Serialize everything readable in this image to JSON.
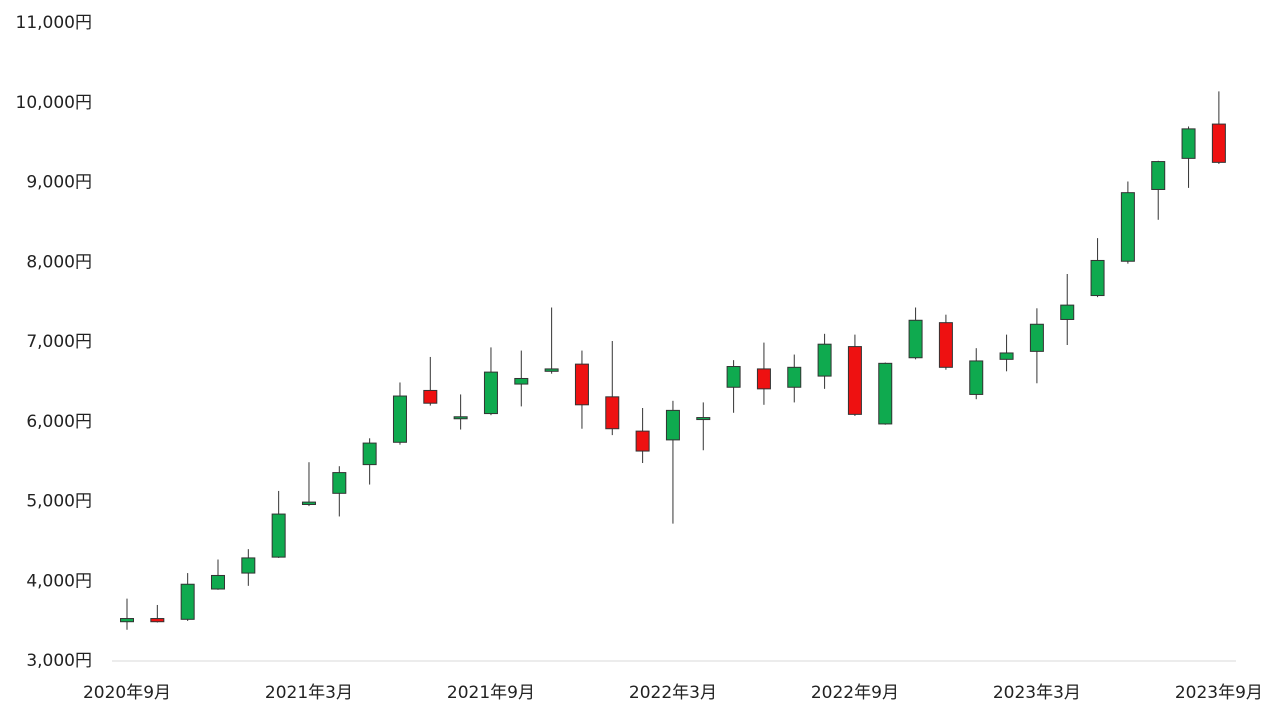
{
  "chart_data": {
    "type": "candlestick",
    "currency_suffix": "円",
    "ylim": [
      3000,
      11000
    ],
    "y_ticks": [
      3000,
      4000,
      5000,
      6000,
      7000,
      8000,
      9000,
      10000,
      11000
    ],
    "y_tick_labels": [
      "3,000円",
      "4,000円",
      "5,000円",
      "6,000円",
      "7,000円",
      "8,000円",
      "9,000円",
      "10,000円",
      "11,000円"
    ],
    "x_tick_labels": [
      "2020年9月",
      "2021年3月",
      "2021年9月",
      "2022年3月",
      "2022年9月",
      "2023年3月",
      "2023年9月"
    ],
    "grid": false,
    "colors": {
      "up": "#0faa4f",
      "down": "#ee1111",
      "axis": "#d9d9d9",
      "text": "#222222"
    },
    "candles": [
      {
        "month": "2020-09",
        "open": 3480,
        "high": 3770,
        "low": 3380,
        "close": 3520
      },
      {
        "month": "2020-10",
        "open": 3520,
        "high": 3690,
        "low": 3470,
        "close": 3480
      },
      {
        "month": "2020-11",
        "open": 3510,
        "high": 4090,
        "low": 3490,
        "close": 3950
      },
      {
        "month": "2020-12",
        "open": 3890,
        "high": 4260,
        "low": 3880,
        "close": 4060
      },
      {
        "month": "2021-01",
        "open": 4090,
        "high": 4390,
        "low": 3930,
        "close": 4280
      },
      {
        "month": "2021-02",
        "open": 4290,
        "high": 5120,
        "low": 4280,
        "close": 4830
      },
      {
        "month": "2021-03",
        "open": 4950,
        "high": 5480,
        "low": 4930,
        "close": 4980
      },
      {
        "month": "2021-04",
        "open": 5090,
        "high": 5430,
        "low": 4800,
        "close": 5350
      },
      {
        "month": "2021-05",
        "open": 5450,
        "high": 5780,
        "low": 5200,
        "close": 5720
      },
      {
        "month": "2021-06",
        "open": 5730,
        "high": 6480,
        "low": 5700,
        "close": 6310
      },
      {
        "month": "2021-07",
        "open": 6380,
        "high": 6800,
        "low": 6190,
        "close": 6220
      },
      {
        "month": "2021-08",
        "open": 6030,
        "high": 6330,
        "low": 5890,
        "close": 6050
      },
      {
        "month": "2021-09",
        "open": 6090,
        "high": 6920,
        "low": 6070,
        "close": 6610
      },
      {
        "month": "2021-10",
        "open": 6460,
        "high": 6880,
        "low": 6180,
        "close": 6530
      },
      {
        "month": "2021-11",
        "open": 6620,
        "high": 7420,
        "low": 6590,
        "close": 6650
      },
      {
        "month": "2021-12",
        "open": 6710,
        "high": 6880,
        "low": 5900,
        "close": 6200
      },
      {
        "month": "2022-01",
        "open": 6300,
        "high": 7000,
        "low": 5820,
        "close": 5900
      },
      {
        "month": "2022-02",
        "open": 5870,
        "high": 6160,
        "low": 5470,
        "close": 5620
      },
      {
        "month": "2022-03",
        "open": 5760,
        "high": 6250,
        "low": 4710,
        "close": 6130
      },
      {
        "month": "2022-04",
        "open": 6020,
        "high": 6230,
        "low": 5630,
        "close": 6040
      },
      {
        "month": "2022-05",
        "open": 6420,
        "high": 6760,
        "low": 6100,
        "close": 6680
      },
      {
        "month": "2022-06",
        "open": 6650,
        "high": 6980,
        "low": 6200,
        "close": 6400
      },
      {
        "month": "2022-07",
        "open": 6420,
        "high": 6830,
        "low": 6230,
        "close": 6670
      },
      {
        "month": "2022-08",
        "open": 6560,
        "high": 7090,
        "low": 6400,
        "close": 6960
      },
      {
        "month": "2022-09",
        "open": 6930,
        "high": 7080,
        "low": 6060,
        "close": 6080
      },
      {
        "month": "2022-10",
        "open": 5960,
        "high": 6730,
        "low": 5950,
        "close": 6720
      },
      {
        "month": "2022-11",
        "open": 6790,
        "high": 7420,
        "low": 6770,
        "close": 7260
      },
      {
        "month": "2022-12",
        "open": 7230,
        "high": 7330,
        "low": 6640,
        "close": 6670
      },
      {
        "month": "2023-01",
        "open": 6330,
        "high": 6910,
        "low": 6270,
        "close": 6750
      },
      {
        "month": "2023-02",
        "open": 6770,
        "high": 7080,
        "low": 6620,
        "close": 6850
      },
      {
        "month": "2023-03",
        "open": 6870,
        "high": 7410,
        "low": 6470,
        "close": 7210
      },
      {
        "month": "2023-04",
        "open": 7270,
        "high": 7840,
        "low": 6950,
        "close": 7450
      },
      {
        "month": "2023-05",
        "open": 7570,
        "high": 8290,
        "low": 7550,
        "close": 8010
      },
      {
        "month": "2023-06",
        "open": 8000,
        "high": 9000,
        "low": 7970,
        "close": 8860
      },
      {
        "month": "2023-07",
        "open": 8900,
        "high": 9260,
        "low": 8520,
        "close": 9250
      },
      {
        "month": "2023-08",
        "open": 9290,
        "high": 9690,
        "low": 8920,
        "close": 9660
      },
      {
        "month": "2023-09",
        "open": 9720,
        "high": 10130,
        "low": 9220,
        "close": 9240
      }
    ]
  }
}
